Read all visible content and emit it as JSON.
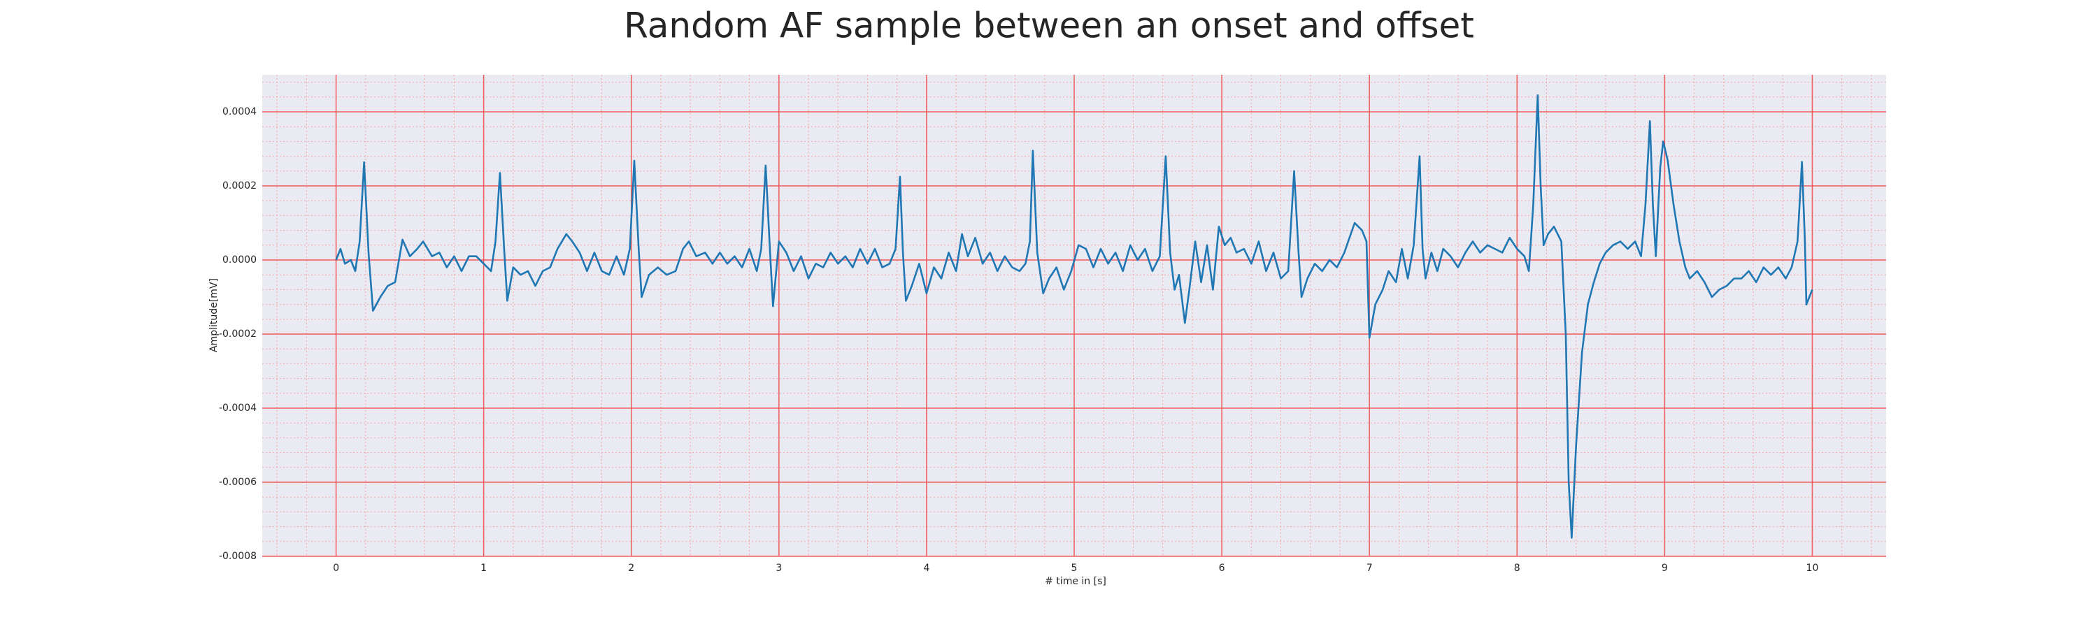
{
  "chart_data": {
    "type": "line",
    "title": "Random AF sample between an onset and offset",
    "x_label": "# time in [s]",
    "y_label": "Amplitude[mV]",
    "color": "#1f77b4",
    "grid": true,
    "minor_grid": true,
    "xlim": [
      -0.5,
      10.5
    ],
    "ylim": [
      -0.0008,
      0.0005
    ],
    "xticks": [
      0,
      1,
      2,
      3,
      4,
      5,
      6,
      7,
      8,
      9,
      10
    ],
    "yticks": [
      -0.0008,
      -0.0006,
      -0.0004,
      -0.0002,
      {
        "value": 0,
        "label": "0.0000"
      },
      0.0002,
      0.0004
    ],
    "x": [
      0,
      0.03,
      0.06,
      0.1,
      0.13,
      0.16,
      0.19,
      0.22,
      0.25,
      0.3,
      0.35,
      0.4,
      0.45,
      0.5,
      0.55,
      0.59,
      0.65,
      0.7,
      0.75,
      0.8,
      0.85,
      0.9,
      0.95,
      1.0,
      1.05,
      1.08,
      1.11,
      1.14,
      1.16,
      1.2,
      1.25,
      1.3,
      1.35,
      1.4,
      1.45,
      1.5,
      1.56,
      1.6,
      1.65,
      1.7,
      1.75,
      1.8,
      1.85,
      1.9,
      1.95,
      1.99,
      2.02,
      2.05,
      2.07,
      2.12,
      2.18,
      2.24,
      2.3,
      2.35,
      2.39,
      2.44,
      2.5,
      2.55,
      2.6,
      2.65,
      2.7,
      2.75,
      2.8,
      2.85,
      2.88,
      2.91,
      2.94,
      2.96,
      3.0,
      3.05,
      3.1,
      3.15,
      3.2,
      3.25,
      3.3,
      3.35,
      3.4,
      3.45,
      3.5,
      3.55,
      3.6,
      3.65,
      3.7,
      3.75,
      3.79,
      3.82,
      3.84,
      3.86,
      3.9,
      3.95,
      4.0,
      4.05,
      4.1,
      4.15,
      4.2,
      4.24,
      4.28,
      4.33,
      4.38,
      4.43,
      4.48,
      4.53,
      4.58,
      4.63,
      4.67,
      4.7,
      4.72,
      4.75,
      4.79,
      4.83,
      4.88,
      4.93,
      4.98,
      5.03,
      5.08,
      5.13,
      5.18,
      5.23,
      5.28,
      5.33,
      5.38,
      5.43,
      5.48,
      5.53,
      5.58,
      5.62,
      5.65,
      5.68,
      5.71,
      5.75,
      5.78,
      5.82,
      5.86,
      5.9,
      5.94,
      5.98,
      6.02,
      6.06,
      6.1,
      6.15,
      6.2,
      6.25,
      6.3,
      6.35,
      6.4,
      6.45,
      6.49,
      6.52,
      6.54,
      6.58,
      6.63,
      6.68,
      6.73,
      6.78,
      6.83,
      6.9,
      6.95,
      6.98,
      7.0,
      7.04,
      7.09,
      7.13,
      7.18,
      7.22,
      7.26,
      7.3,
      7.34,
      7.36,
      7.38,
      7.42,
      7.46,
      7.5,
      7.55,
      7.6,
      7.65,
      7.7,
      7.75,
      7.8,
      7.85,
      7.9,
      7.95,
      8.0,
      8.05,
      8.08,
      8.11,
      8.14,
      8.16,
      8.18,
      8.21,
      8.25,
      8.3,
      8.33,
      8.35,
      8.37,
      8.4,
      8.44,
      8.48,
      8.52,
      8.56,
      8.6,
      8.65,
      8.7,
      8.75,
      8.8,
      8.84,
      8.87,
      8.9,
      8.92,
      8.94,
      8.97,
      8.99,
      9.02,
      9.06,
      9.1,
      9.14,
      9.17,
      9.22,
      9.27,
      9.32,
      9.37,
      9.42,
      9.47,
      9.52,
      9.57,
      9.62,
      9.67,
      9.72,
      9.77,
      9.82,
      9.86,
      9.9,
      9.93,
      9.95,
      9.96,
      10.0
    ],
    "values": [
      0,
      3e-05,
      -1e-05,
      0,
      -3e-05,
      5e-05,
      0.000264,
      2e-05,
      -0.000137,
      -0.0001,
      -7e-05,
      -6e-05,
      5.5e-05,
      1e-05,
      3e-05,
      5e-05,
      1e-05,
      2e-05,
      -2e-05,
      1e-05,
      -3e-05,
      1e-05,
      1e-05,
      -1e-05,
      -3e-05,
      5e-05,
      0.000235,
      2e-05,
      -0.00011,
      -2e-05,
      -4e-05,
      -3e-05,
      -7e-05,
      -3e-05,
      -2e-05,
      3e-05,
      7e-05,
      5e-05,
      2e-05,
      -3e-05,
      2e-05,
      -3e-05,
      -4e-05,
      1e-05,
      -4e-05,
      3e-05,
      0.000268,
      3e-05,
      -0.0001,
      -4e-05,
      -2e-05,
      -4e-05,
      -3e-05,
      3e-05,
      5e-05,
      1e-05,
      2e-05,
      -1e-05,
      2e-05,
      -1e-05,
      1e-05,
      -2e-05,
      3e-05,
      -3e-05,
      3e-05,
      0.000255,
      2e-05,
      -0.000125,
      5e-05,
      2e-05,
      -3e-05,
      1e-05,
      -5e-05,
      -1e-05,
      -2e-05,
      2e-05,
      -1e-05,
      1e-05,
      -2e-05,
      3e-05,
      -1e-05,
      3e-05,
      -2e-05,
      -1e-05,
      3e-05,
      0.000225,
      2e-05,
      -0.00011,
      -7e-05,
      -1e-05,
      -9e-05,
      -2e-05,
      -5e-05,
      2e-05,
      -3e-05,
      7e-05,
      1e-05,
      6e-05,
      -1e-05,
      2e-05,
      -3e-05,
      1e-05,
      -2e-05,
      -3e-05,
      -1e-05,
      5e-05,
      0.000295,
      2e-05,
      -9e-05,
      -5e-05,
      -2e-05,
      -8e-05,
      -3e-05,
      4e-05,
      3e-05,
      -2e-05,
      3e-05,
      -1e-05,
      2e-05,
      -3e-05,
      4e-05,
      0,
      3e-05,
      -3e-05,
      1e-05,
      0.00028,
      2e-05,
      -8e-05,
      -4e-05,
      -0.00017,
      -8e-05,
      5e-05,
      -6e-05,
      4e-05,
      -8e-05,
      9e-05,
      4e-05,
      6e-05,
      2e-05,
      3e-05,
      -1e-05,
      5e-05,
      -3e-05,
      2e-05,
      -5e-05,
      -3e-05,
      0.00024,
      2e-05,
      -0.0001,
      -5e-05,
      -1e-05,
      -3e-05,
      0,
      -2e-05,
      2e-05,
      0.0001,
      8e-05,
      5e-05,
      -0.00021,
      -0.00012,
      -8e-05,
      -3e-05,
      -6e-05,
      3e-05,
      -5e-05,
      4e-05,
      0.00028,
      3e-05,
      -5e-05,
      2e-05,
      -3e-05,
      3e-05,
      1e-05,
      -2e-05,
      2e-05,
      5e-05,
      2e-05,
      4e-05,
      3e-05,
      2e-05,
      6e-05,
      3e-05,
      1e-05,
      -3e-05,
      0.00015,
      0.000445,
      0.0002,
      4e-05,
      7e-05,
      9e-05,
      5e-05,
      -0.0002,
      -0.0006,
      -0.00075,
      -0.0005,
      -0.00025,
      -0.00012,
      -6e-05,
      -1e-05,
      2e-05,
      4e-05,
      5e-05,
      3e-05,
      5e-05,
      1e-05,
      0.00015,
      0.000375,
      0.00015,
      1e-05,
      0.00025,
      0.00032,
      0.00027,
      0.00015,
      5e-05,
      -2e-05,
      -5e-05,
      -3e-05,
      -6e-05,
      -0.0001,
      -8e-05,
      -7e-05,
      -5e-05,
      -5e-05,
      -3e-05,
      -6e-05,
      -2e-05,
      -4e-05,
      -2e-05,
      -5e-05,
      -2e-05,
      5e-05,
      0.000265,
      5e-05,
      -0.00012,
      -8e-05
    ]
  }
}
